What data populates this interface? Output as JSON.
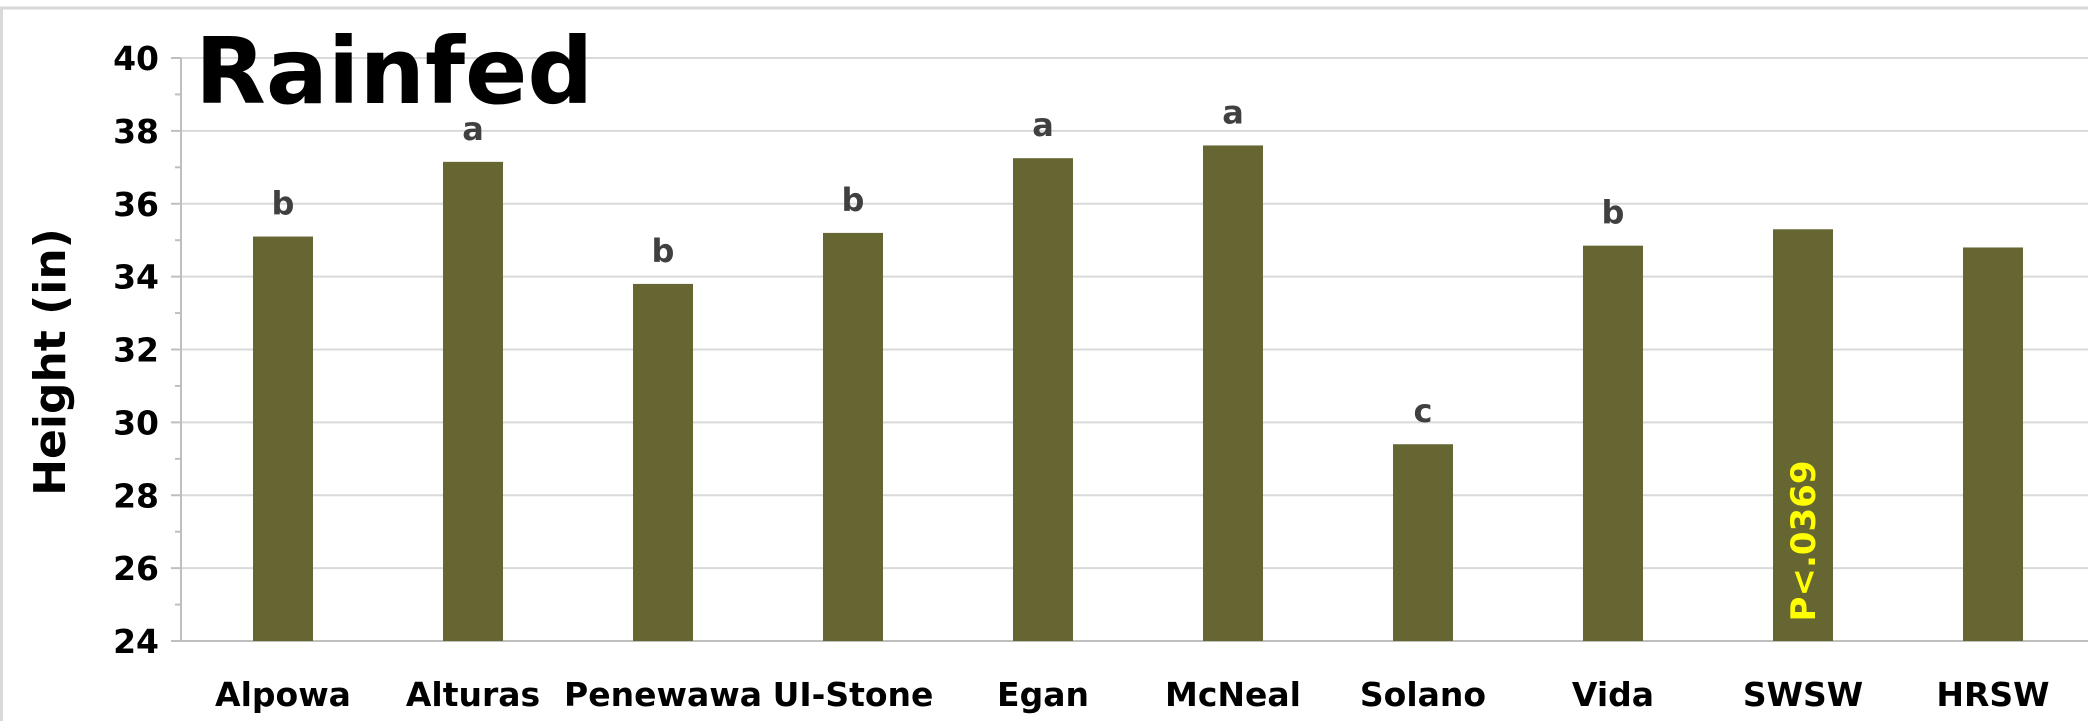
{
  "chart_data": {
    "type": "bar",
    "title": "Rainfed",
    "ylabel": "Height (in)",
    "xlabel": "",
    "ylim": [
      24,
      40
    ],
    "yticks": [
      24,
      26,
      28,
      30,
      32,
      34,
      36,
      38,
      40
    ],
    "grid": true,
    "categories": [
      "Alpowa",
      "Alturas",
      "Penewawa",
      "UI-Stone",
      "Egan",
      "McNeal",
      "Solano",
      "Vida",
      "SWSW",
      "HRSW"
    ],
    "values": [
      35.1,
      37.15,
      33.8,
      35.2,
      37.25,
      37.6,
      29.4,
      34.85,
      35.3,
      34.8
    ],
    "significance_letters": [
      "b",
      "a",
      "b",
      "b",
      "a",
      "a",
      "c",
      "b",
      "",
      ""
    ],
    "annotation": "P<.0369",
    "annotation_category": "SWSW",
    "bar_color": "#666633",
    "grid_color": "#d9d9d9",
    "annotation_color": "#ffff00"
  }
}
